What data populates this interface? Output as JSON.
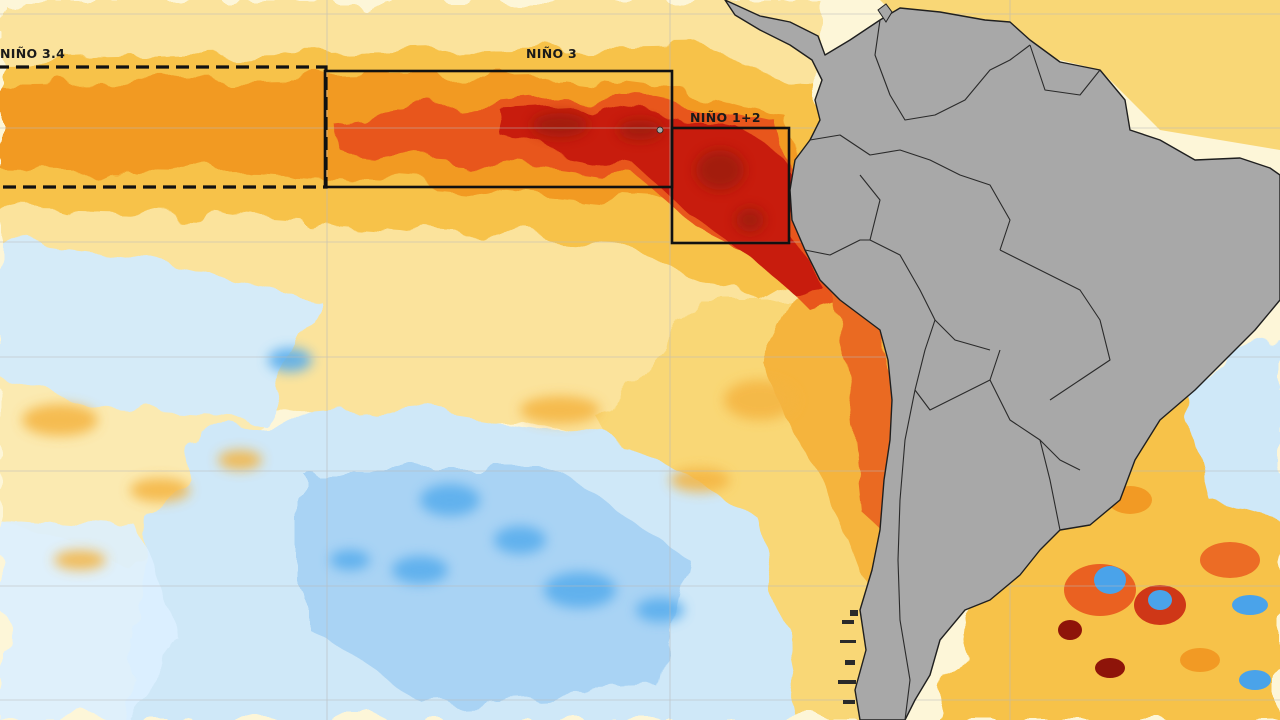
{
  "map": {
    "regions": [
      {
        "id": "nino-3-4",
        "label": "NIÑO 3.4",
        "style": "dashed"
      },
      {
        "id": "nino-3",
        "label": "NIÑO 3",
        "style": "solid"
      },
      {
        "id": "nino-1-2",
        "label": "NIÑO 1+2",
        "style": "solid"
      }
    ],
    "colors": {
      "ocean_base": "#fdf6d8",
      "warm_light": "#fbe39c",
      "warm_mid": "#f7c24a",
      "warm_orange": "#f29a24",
      "warm_strong": "#e8561d",
      "warm_extreme": "#c81e0e",
      "warm_max": "#8e1409",
      "cool_light": "#cfe8f8",
      "cool_mid": "#a9d3f4",
      "cool_strong": "#4aa3ea",
      "land": "#a8a8a8",
      "borders": "#2a2a2a"
    }
  }
}
